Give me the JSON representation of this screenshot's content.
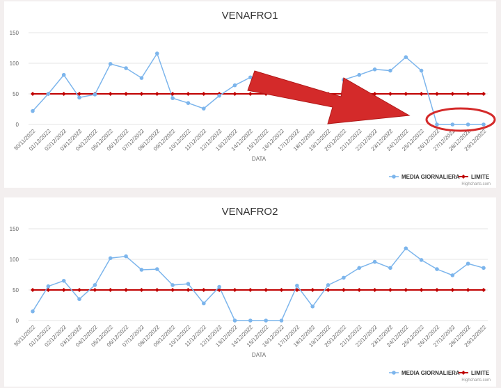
{
  "colors": {
    "media": "#7cb5ec",
    "limite": "#c00000",
    "grid": "#e6e6e6",
    "arrow": "#d42a2a",
    "circle": "#d42a2a"
  },
  "legend": {
    "media_label": "MEDIA GIORNALIERA",
    "limite_label": "LIMITE",
    "placement": "bottom-right"
  },
  "credits": "Highcharts.com",
  "chart_data": [
    {
      "type": "line",
      "title": "VENAFRO1",
      "xlabel": "DATA",
      "ylabel": "",
      "ylim": [
        0,
        150
      ],
      "yticks": [
        0,
        50,
        100,
        150
      ],
      "categories": [
        "30/11/2022",
        "01/12/2022",
        "02/12/2022",
        "03/12/2022",
        "04/12/2022",
        "05/12/2022",
        "06/12/2022",
        "07/12/2022",
        "08/12/2022",
        "09/12/2022",
        "10/12/2022",
        "11/12/2022",
        "12/12/2022",
        "13/12/2022",
        "14/12/2022",
        "15/12/2022",
        "16/12/2022",
        "17/12/2022",
        "18/12/2022",
        "19/12/2022",
        "20/12/2022",
        "21/12/2022",
        "22/12/2022",
        "23/12/2022",
        "24/12/2022",
        "25/12/2022",
        "26/12/2022",
        "27/12/2022",
        "28/12/2022",
        "29/12/2022"
      ],
      "series": [
        {
          "name": "MEDIA GIORNALIERA",
          "values": [
            22,
            50,
            81,
            44,
            49,
            99,
            92,
            76,
            116,
            43,
            35,
            26,
            47,
            64,
            77,
            null,
            null,
            null,
            null,
            null,
            73,
            81,
            90,
            88,
            110,
            88,
            0,
            0,
            0,
            0
          ]
        },
        {
          "name": "LIMITE",
          "values": [
            50,
            50,
            50,
            50,
            50,
            50,
            50,
            50,
            50,
            50,
            50,
            50,
            50,
            50,
            50,
            50,
            50,
            50,
            50,
            50,
            50,
            50,
            50,
            50,
            50,
            50,
            50,
            50,
            50,
            50
          ]
        }
      ]
    },
    {
      "type": "line",
      "title": "VENAFRO2",
      "xlabel": "DATA",
      "ylabel": "",
      "ylim": [
        0,
        150
      ],
      "yticks": [
        0,
        50,
        100,
        150
      ],
      "categories": [
        "30/11/2022",
        "01/12/2022",
        "02/12/2022",
        "03/12/2022",
        "04/12/2022",
        "05/12/2022",
        "06/12/2022",
        "07/12/2022",
        "08/12/2022",
        "09/12/2022",
        "10/12/2022",
        "11/12/2022",
        "12/12/2022",
        "13/12/2022",
        "14/12/2022",
        "15/12/2022",
        "16/12/2022",
        "17/12/2022",
        "18/12/2022",
        "19/12/2022",
        "20/12/2022",
        "21/12/2022",
        "22/12/2022",
        "23/12/2022",
        "24/12/2022",
        "25/12/2022",
        "26/12/2022",
        "27/12/2022",
        "28/12/2022",
        "29/12/2022"
      ],
      "series": [
        {
          "name": "MEDIA GIORNALIERA",
          "values": [
            15,
            56,
            65,
            35,
            58,
            102,
            105,
            83,
            84,
            58,
            60,
            28,
            55,
            0,
            0,
            0,
            0,
            57,
            23,
            58,
            70,
            86,
            96,
            86,
            118,
            99,
            84,
            74,
            93,
            86
          ]
        },
        {
          "name": "LIMITE",
          "values": [
            50,
            50,
            50,
            50,
            50,
            50,
            50,
            50,
            50,
            50,
            50,
            50,
            50,
            50,
            50,
            50,
            50,
            50,
            50,
            50,
            50,
            50,
            50,
            50,
            50,
            50,
            50,
            50,
            50,
            50
          ]
        }
      ]
    }
  ]
}
